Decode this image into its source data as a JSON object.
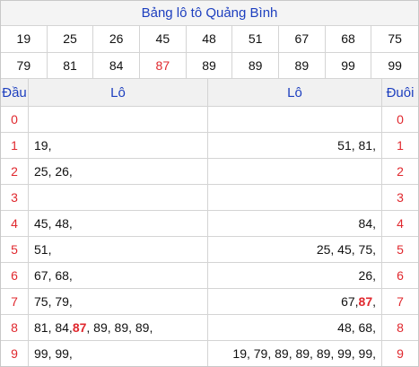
{
  "title": "Bảng lô tô Quảng Bình",
  "numbers": [
    [
      19,
      25,
      26,
      45,
      48,
      51,
      67,
      68,
      75
    ],
    [
      79,
      81,
      84,
      {
        "value": 87,
        "highlight": true
      },
      89,
      89,
      89,
      99,
      99
    ]
  ],
  "table": {
    "headers": [
      "Đầu",
      "Lô",
      "Lô",
      "Đuôi"
    ],
    "rows": [
      {
        "head": 0,
        "by_head": [],
        "by_tail": [],
        "tail": 0
      },
      {
        "head": 1,
        "by_head": [
          "19,"
        ],
        "by_tail": [
          "51, 81,"
        ],
        "tail": 1
      },
      {
        "head": 2,
        "by_head": [
          "25, 26,"
        ],
        "by_tail": [],
        "tail": 2
      },
      {
        "head": 3,
        "by_head": [],
        "by_tail": [],
        "tail": 3
      },
      {
        "head": 4,
        "by_head": [
          "45, 48,"
        ],
        "by_tail": [
          "84,"
        ],
        "tail": 4
      },
      {
        "head": 5,
        "by_head": [
          "51,"
        ],
        "by_tail": [
          "25, 45, 75,"
        ],
        "tail": 5
      },
      {
        "head": 6,
        "by_head": [
          "67, 68,"
        ],
        "by_tail": [
          "26,"
        ],
        "tail": 6
      },
      {
        "head": 7,
        "by_head": [
          "75, 79,"
        ],
        "by_tail": [
          "67, ",
          {
            "text": "87",
            "highlight": true
          },
          ","
        ],
        "tail": 7
      },
      {
        "head": 8,
        "by_head": [
          "81, 84, ",
          {
            "text": "87",
            "highlight": true
          },
          ", 89, 89, 89,"
        ],
        "by_tail": [
          "48, 68,"
        ],
        "tail": 8
      },
      {
        "head": 9,
        "by_head": [
          "99, 99,"
        ],
        "by_tail": [
          "19, 79, 89, 89, 89, 99, 99,"
        ],
        "tail": 9
      }
    ]
  }
}
